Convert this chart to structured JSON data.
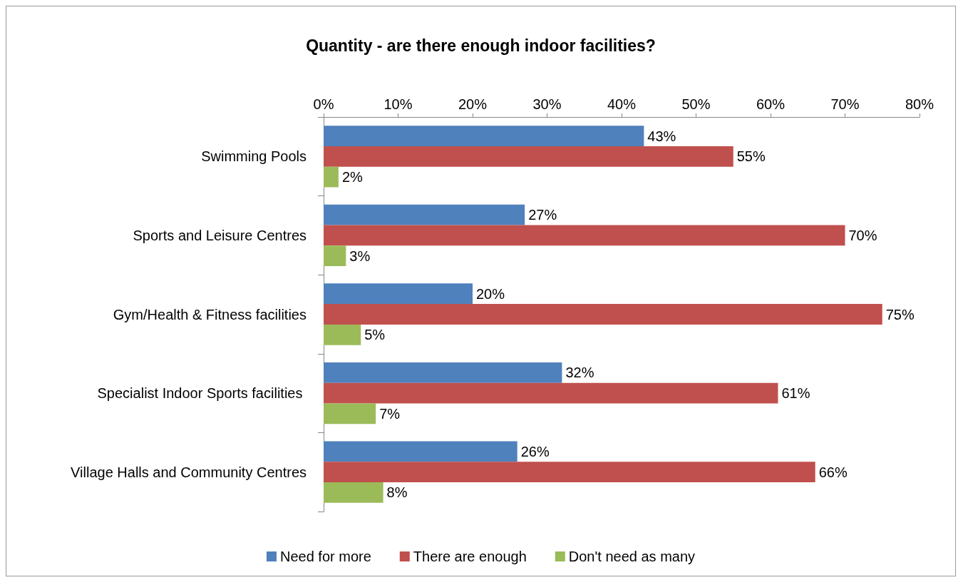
{
  "chart_data": {
    "type": "bar",
    "orientation": "horizontal",
    "title": "Quantity - are there enough indoor facilities?",
    "categories": [
      "Swimming Pools",
      "Sports and Leisure Centres",
      "Gym/Health & Fitness facilities",
      "Specialist Indoor Sports facilities ",
      "Village Halls and Community Centres"
    ],
    "series": [
      {
        "name": "Need for more",
        "color": "#4f81bd",
        "values": [
          43,
          27,
          20,
          32,
          26
        ],
        "value_labels": [
          "43%",
          "27%",
          "20%",
          "32%",
          "26%"
        ]
      },
      {
        "name": "There are enough",
        "color": "#c0504d",
        "values": [
          55,
          70,
          75,
          61,
          66
        ],
        "value_labels": [
          "55%",
          "70%",
          "75%",
          "61%",
          "66%"
        ]
      },
      {
        "name": "Don't need as many",
        "color": "#9bbb59",
        "values": [
          2,
          3,
          5,
          7,
          8
        ],
        "value_labels": [
          "2%",
          "3%",
          "5%",
          "7%",
          "8%"
        ]
      }
    ],
    "xlim": [
      0,
      80
    ],
    "xticks": [
      {
        "value": 0,
        "label": "0%"
      },
      {
        "value": 10,
        "label": "10%"
      },
      {
        "value": 20,
        "label": "20%"
      },
      {
        "value": 30,
        "label": "30%"
      },
      {
        "value": 40,
        "label": "40%"
      },
      {
        "value": 50,
        "label": "50%"
      },
      {
        "value": 60,
        "label": "60%"
      },
      {
        "value": 70,
        "label": "70%"
      },
      {
        "value": 80,
        "label": "80%"
      }
    ],
    "grid": false,
    "legend": "bottom"
  }
}
